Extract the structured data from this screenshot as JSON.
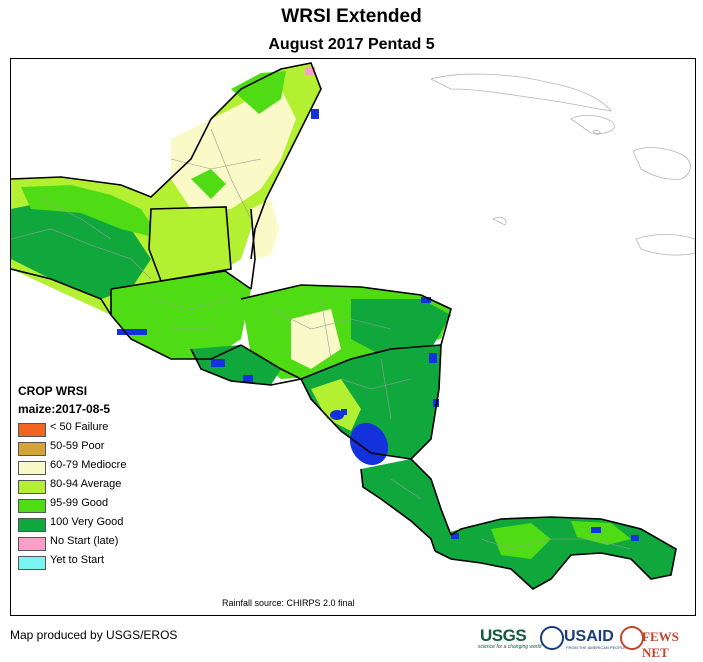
{
  "title": "WRSI Extended",
  "subtitle": "August 2017 Pentad 5",
  "legend": {
    "title": "CROP WRSI",
    "subtitle": "maize:2017-08-5",
    "items": [
      {
        "label": "< 50  Failure",
        "color": "#f26422"
      },
      {
        "label": "50-59 Poor",
        "color": "#d4a437"
      },
      {
        "label": "60-79 Mediocre",
        "color": "#fafac8"
      },
      {
        "label": "80-94 Average",
        "color": "#b4f032"
      },
      {
        "label": "95-99 Good",
        "color": "#50dc14"
      },
      {
        "label": "100 Very Good",
        "color": "#10a83c"
      },
      {
        "label": "No Start (late)",
        "color": "#faa0c8"
      },
      {
        "label": "Yet to Start",
        "color": "#78f5f0"
      }
    ]
  },
  "source": "Rainfall source: CHIRPS 2.0 final",
  "credit": "Map produced by USGS/EROS",
  "logos": {
    "usgs": "USGS",
    "usgs_tagline": "science for a changing world",
    "usaid": "USAID",
    "usaid_tagline": "FROM THE AMERICAN PEOPLE",
    "fewsnet": "FEWS NET"
  },
  "colors": {
    "water": "#1432dc",
    "border": "#000000",
    "admin": "#9a9a9a"
  }
}
